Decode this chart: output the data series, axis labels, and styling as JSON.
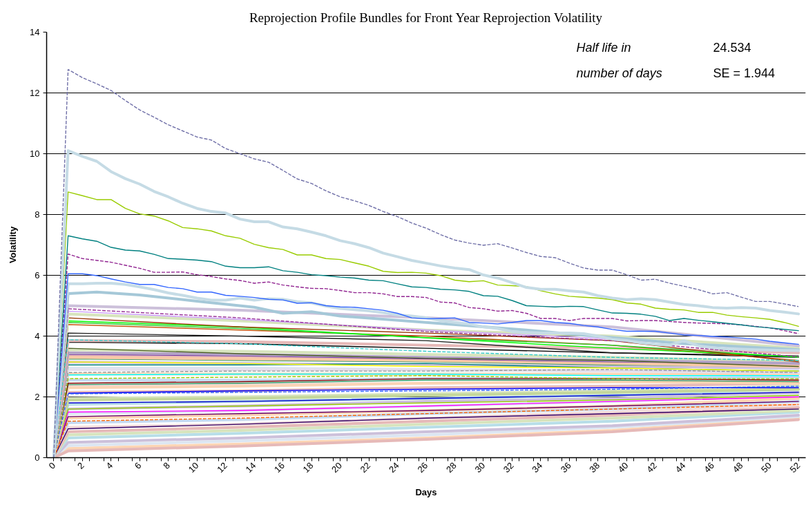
{
  "chart_data": {
    "type": "line",
    "title": "Reprojection Profile Bundles for Front Year Reprojection Volatility",
    "xlabel": "Days",
    "ylabel": "Volatility",
    "annotations": [
      "Half life in",
      "24.534",
      "number of days",
      "SE = 1.944"
    ],
    "xlim": [
      -0.5,
      52.5
    ],
    "ylim": [
      0,
      14
    ],
    "yticks": [
      0,
      2,
      4,
      6,
      8,
      10,
      12,
      14
    ],
    "xticks": [
      0,
      2,
      4,
      6,
      8,
      10,
      12,
      14,
      16,
      18,
      20,
      22,
      24,
      26,
      28,
      30,
      32,
      34,
      36,
      38,
      40,
      42,
      44,
      46,
      48,
      50,
      52,
      {
        "value": 0.5,
        "label": null
      },
      {
        "value": 1.5,
        "label": null
      },
      {
        "value": 2.5,
        "label": null
      },
      {
        "value": 3.5,
        "label": null
      },
      {
        "value": 4.5,
        "label": null
      },
      {
        "value": 5.5,
        "label": null
      },
      {
        "value": 6.5,
        "label": null
      },
      {
        "value": 7.5,
        "label": null
      },
      {
        "value": 8.5,
        "label": null
      },
      {
        "value": 9.5,
        "label": null
      },
      {
        "value": 10.5,
        "label": null
      },
      {
        "value": 11.5,
        "label": null
      },
      {
        "value": 12.5,
        "label": null
      },
      {
        "value": 13.5,
        "label": null
      },
      {
        "value": 14.5,
        "label": null
      },
      {
        "value": 15.5,
        "label": null
      },
      {
        "value": 16.5,
        "label": null
      },
      {
        "value": 17.5,
        "label": null
      },
      {
        "value": 18.5,
        "label": null
      },
      {
        "value": 19.5,
        "label": null
      },
      {
        "value": 20.5,
        "label": null
      },
      {
        "value": 21.5,
        "label": null
      },
      {
        "value": 22.5,
        "label": null
      },
      {
        "value": 23.5,
        "label": null
      },
      {
        "value": 24.5,
        "label": null
      },
      {
        "value": 25.5,
        "label": null
      },
      {
        "value": 26.5,
        "label": null
      },
      {
        "value": 27.5,
        "label": null
      },
      {
        "value": 28.5,
        "label": null
      },
      {
        "value": 29.5,
        "label": null
      },
      {
        "value": 30.5,
        "label": null
      },
      {
        "value": 31.5,
        "label": null
      },
      {
        "value": 32.5,
        "label": null
      },
      {
        "value": 33.5,
        "label": null
      },
      {
        "value": 34.5,
        "label": null
      },
      {
        "value": 35.5,
        "label": null
      },
      {
        "value": 36.5,
        "label": null
      },
      {
        "value": 37.5,
        "label": null
      },
      {
        "value": 38.5,
        "label": null
      },
      {
        "value": 39.5,
        "label": null
      },
      {
        "value": 40.5,
        "label": null
      },
      {
        "value": 41.5,
        "label": null
      },
      {
        "value": 42.5,
        "label": null
      },
      {
        "value": 43.5,
        "label": null
      },
      {
        "value": 44.5,
        "label": null
      },
      {
        "value": 45.5,
        "label": null
      },
      {
        "value": 46.5,
        "label": null
      },
      {
        "value": 47.5,
        "label": null
      },
      {
        "value": 48.5,
        "label": null
      },
      {
        "value": 49.5,
        "label": null
      },
      {
        "value": 50.5,
        "label": null
      },
      {
        "value": 51.5,
        "label": null
      }
    ],
    "grid": "y",
    "x": [
      0,
      1,
      2,
      3,
      4,
      5,
      6,
      7,
      8,
      9,
      10,
      11,
      12,
      13,
      14,
      15,
      16,
      17,
      18,
      19,
      20,
      21,
      22,
      23,
      24,
      25,
      26,
      27,
      28,
      29,
      30,
      31,
      32,
      33,
      34,
      35,
      36,
      37,
      38,
      39,
      40,
      41,
      42,
      43,
      44,
      45,
      46,
      47,
      48,
      49,
      50,
      51,
      52
    ],
    "series": [
      {
        "color": "#fcd5b4",
        "x": [
          0,
          1,
          13,
          26,
          39,
          52
        ],
        "values": [
          0,
          0.3,
          0.45,
          0.65,
          0.9,
          1.3
        ]
      },
      {
        "color": "#dce6f2",
        "x": [
          0,
          1,
          13,
          26,
          39,
          52
        ],
        "values": [
          0,
          0.4,
          0.55,
          0.75,
          1.0,
          1.35
        ]
      },
      {
        "color": "#ccc0da",
        "x": [
          0,
          1,
          13,
          26,
          39,
          52
        ],
        "values": [
          0,
          0.5,
          0.65,
          0.85,
          1.05,
          1.4
        ]
      },
      {
        "color": "#b7dee8",
        "x": [
          0,
          1,
          13,
          26,
          39,
          52
        ],
        "values": [
          0,
          0.65,
          0.8,
          1.0,
          1.2,
          1.5
        ]
      },
      {
        "color": "#d7e4bd",
        "x": [
          0,
          1,
          13,
          26,
          39,
          52
        ],
        "values": [
          0,
          0.75,
          0.9,
          1.1,
          1.3,
          1.55
        ]
      },
      {
        "color": "#e6b9b8",
        "x": [
          0,
          1,
          13,
          26,
          39,
          52
        ],
        "values": [
          0,
          0.85,
          1.0,
          1.2,
          1.4,
          1.65
        ]
      },
      {
        "color": "#f2dcdb",
        "x": [
          0,
          1,
          13,
          26,
          39,
          52
        ],
        "values": [
          0,
          1.0,
          1.1,
          1.3,
          1.5,
          1.75
        ]
      },
      {
        "color": "#c5d9f1",
        "x": [
          0,
          1,
          13,
          26,
          39,
          52
        ],
        "values": [
          0,
          1.15,
          1.25,
          1.45,
          1.6,
          1.85
        ]
      },
      {
        "color": "#fcd5b4",
        "x": [
          0,
          1,
          13,
          26,
          39,
          52
        ],
        "values": [
          0,
          1.3,
          1.4,
          1.55,
          1.7,
          1.95
        ]
      },
      {
        "color": "#dce6f2",
        "x": [
          0,
          1,
          13,
          26,
          39,
          52
        ],
        "values": [
          0,
          1.45,
          1.55,
          1.7,
          1.85,
          2.05
        ]
      },
      {
        "color": "#ccc0da",
        "x": [
          0,
          1,
          13,
          26,
          39,
          52
        ],
        "values": [
          0,
          1.6,
          1.7,
          1.85,
          1.95,
          2.15
        ]
      },
      {
        "color": "#b7dee8",
        "x": [
          0,
          1,
          13,
          26,
          39,
          52
        ],
        "values": [
          0,
          1.75,
          1.85,
          1.95,
          2.05,
          2.25
        ]
      },
      {
        "color": "#d7e4bd",
        "x": [
          0,
          1,
          13,
          26,
          39,
          52
        ],
        "values": [
          0,
          1.95,
          2.0,
          2.1,
          2.2,
          2.35
        ]
      },
      {
        "color": "#e6b9b8",
        "x": [
          0,
          1,
          13,
          26,
          39,
          52
        ],
        "values": [
          0,
          2.15,
          2.2,
          2.3,
          2.35,
          2.45
        ]
      },
      {
        "color": "#f2dcdb",
        "x": [
          0,
          1,
          13,
          26,
          39,
          52
        ],
        "values": [
          0,
          2.35,
          2.4,
          2.45,
          2.5,
          2.55
        ]
      },
      {
        "color": "#c5d9f1",
        "x": [
          0,
          1,
          13,
          26,
          39,
          52
        ],
        "values": [
          0,
          2.55,
          2.55,
          2.6,
          2.6,
          2.65
        ]
      },
      {
        "color": "#fcd5b4",
        "x": [
          0,
          1,
          13,
          26,
          39,
          52
        ],
        "values": [
          0,
          2.75,
          2.75,
          2.75,
          2.75,
          2.75
        ]
      },
      {
        "color": "#dce6f2",
        "x": [
          0,
          1,
          13,
          26,
          39,
          52
        ],
        "values": [
          0,
          2.95,
          2.95,
          2.9,
          2.85,
          2.85
        ]
      },
      {
        "color": "#ccc0da",
        "x": [
          0,
          1,
          13,
          26,
          39,
          52
        ],
        "values": [
          0,
          3.15,
          3.1,
          3.05,
          3.0,
          2.95
        ]
      },
      {
        "color": "#e6b9b8",
        "x": [
          0,
          1,
          13,
          26,
          39,
          52
        ],
        "values": [
          0,
          3.35,
          3.3,
          3.2,
          3.1,
          3.05
        ]
      },
      {
        "color": "#d7e4bd",
        "x": [
          0,
          1,
          13,
          26,
          39,
          52
        ],
        "values": [
          0,
          3.55,
          3.5,
          3.4,
          3.3,
          3.15
        ]
      },
      {
        "color": "#e6b9b8",
        "x": [
          0,
          1,
          13,
          26,
          39,
          52
        ],
        "values": [
          0,
          0.22,
          0.38,
          0.6,
          0.85,
          1.25
        ]
      },
      {
        "color": "#330066",
        "x": [
          0,
          1,
          13,
          26,
          39,
          52
        ],
        "values": [
          0,
          0.95,
          1.1,
          1.3,
          1.45,
          1.6
        ]
      },
      {
        "color": "#660066",
        "x": [
          0,
          1,
          13,
          26,
          39,
          52
        ],
        "values": [
          0,
          1.35,
          1.45,
          1.55,
          1.7,
          1.85
        ]
      },
      {
        "color": "#ff00ff",
        "x": [
          0,
          1,
          13,
          26,
          39,
          52
        ],
        "values": [
          0,
          1.5,
          1.55,
          1.7,
          1.85,
          2.0
        ]
      },
      {
        "color": "#99cc00",
        "x": [
          0,
          1,
          13,
          26,
          39,
          52
        ],
        "values": [
          0,
          1.6,
          1.7,
          1.8,
          1.9,
          2.05
        ]
      },
      {
        "color": "#0000cc",
        "x": [
          0,
          1,
          13,
          26,
          39,
          52
        ],
        "values": [
          0,
          1.8,
          1.85,
          1.95,
          2.05,
          2.15
        ]
      },
      {
        "color": "#c4d79b",
        "x": [
          0,
          1,
          13,
          26,
          39,
          52
        ],
        "values": [
          0,
          1.9,
          1.95,
          2.05,
          2.15,
          2.25
        ]
      },
      {
        "color": "#0000ff",
        "x": [
          0,
          1,
          13,
          26,
          39,
          52
        ],
        "values": [
          0,
          2.12,
          2.2,
          2.25,
          2.3,
          2.3
        ]
      },
      {
        "color": "#fbd4b4",
        "x": [
          0,
          1,
          13,
          26,
          39,
          52
        ],
        "values": [
          0,
          2.3,
          2.35,
          2.45,
          2.5,
          2.45
        ]
      },
      {
        "color": "#339966",
        "x": [
          0,
          1,
          13,
          26,
          39,
          52
        ],
        "values": [
          0,
          2.4,
          2.45,
          2.55,
          2.55,
          2.5
        ]
      },
      {
        "color": "#800000",
        "x": [
          0,
          1,
          13,
          26,
          39,
          52
        ],
        "values": [
          0,
          2.45,
          2.5,
          2.6,
          2.6,
          2.55
        ]
      },
      {
        "color": "#00ffff",
        "x": [
          0,
          1,
          13,
          26,
          39,
          52
        ],
        "values": [
          0,
          2.72,
          2.75,
          2.75,
          2.7,
          2.7
        ]
      },
      {
        "color": "#e4dfec",
        "x": [
          0,
          1,
          13,
          26,
          39,
          52
        ],
        "values": [
          0,
          2.9,
          2.9,
          2.9,
          2.85,
          2.8
        ]
      },
      {
        "color": "#008080",
        "x": [
          0,
          1,
          13,
          26,
          39,
          52
        ],
        "values": [
          0,
          3.05,
          3.05,
          3.1,
          2.95,
          2.85
        ]
      },
      {
        "color": "#ffff00",
        "x": [
          0,
          1,
          13,
          26,
          39,
          52
        ],
        "values": [
          0,
          3.15,
          3.1,
          3.0,
          2.95,
          2.85
        ]
      },
      {
        "color": "#339966",
        "x": [
          0,
          1,
          13,
          26,
          39,
          52
        ],
        "values": [
          0,
          3.25,
          3.2,
          3.15,
          3.05,
          3.0
        ]
      },
      {
        "color": "#f9c9a6",
        "x": [
          0,
          1,
          13,
          26,
          39,
          52
        ],
        "values": [
          0,
          3.3,
          3.25,
          3.2,
          3.1,
          3.0
        ]
      },
      {
        "color": "#7030a0",
        "x": [
          0,
          1,
          13,
          26,
          39,
          52
        ],
        "values": [
          0,
          3.4,
          3.35,
          3.25,
          3.15,
          3.1
        ]
      },
      {
        "color": "#b3a2c7",
        "x": [
          0,
          1,
          13,
          26,
          39,
          52
        ],
        "values": [
          0,
          3.45,
          3.4,
          3.3,
          3.2,
          3.1
        ]
      },
      {
        "color": "#4f6228",
        "x": [
          0,
          1,
          13,
          26,
          39,
          52
        ],
        "values": [
          0,
          3.6,
          3.42,
          3.27,
          3.2,
          3.0
        ]
      },
      {
        "color": "#000000",
        "x": [
          0,
          1,
          13,
          26,
          39,
          52
        ],
        "values": [
          0,
          3.8,
          3.75,
          3.6,
          3.45,
          3.3
        ]
      },
      {
        "color": "#e6b9b8",
        "x": [
          0,
          1,
          13,
          26,
          39,
          52
        ],
        "values": [
          0,
          3.85,
          3.82,
          3.7,
          3.6,
          3.45
        ]
      },
      {
        "color": "#1f1f1f",
        "x": [
          0,
          1,
          13,
          26,
          39,
          52
        ],
        "values": [
          0,
          4.1,
          4.0,
          3.85,
          3.45,
          3.35
        ]
      },
      {
        "color": "#c65911",
        "x": [
          0,
          1,
          13,
          26,
          39,
          52
        ],
        "values": [
          0,
          4.38,
          4.2,
          4.0,
          3.7,
          3.2
        ]
      },
      {
        "color": "#33cc33",
        "x": [
          0,
          1,
          13,
          26,
          39,
          52
        ],
        "values": [
          0,
          4.45,
          4.25,
          3.95,
          3.7,
          3.3
        ]
      },
      {
        "color": "#00ff00",
        "x": [
          0,
          1,
          13,
          26,
          39,
          52
        ],
        "values": [
          0,
          4.5,
          4.3,
          3.94,
          3.6,
          3.32
        ]
      },
      {
        "color": "#993300",
        "x": [
          0,
          1,
          13,
          26,
          39,
          52
        ],
        "values": [
          0,
          4.6,
          4.3,
          4.1,
          3.85,
          3.15
        ]
      },
      {
        "color": "#d7e4bd",
        "x": [
          0,
          1,
          13,
          26,
          39,
          52
        ],
        "values": [
          0,
          4.73,
          4.5,
          4.2,
          4.0,
          3.6
        ]
      },
      {
        "color": "#cc99ff",
        "x": [
          0,
          1,
          13,
          26,
          39,
          52
        ],
        "values": [
          0,
          4.82,
          4.55,
          4.2,
          3.9,
          3.5
        ]
      },
      {
        "color": "#ccc0da",
        "x": [
          0,
          1,
          13,
          26,
          39,
          52
        ],
        "values": [
          0,
          5.0,
          4.85,
          4.6,
          4.3,
          3.68
        ]
      },
      {
        "color": "#ff6600",
        "line_style": "dashed",
        "x": [
          0,
          1,
          13,
          26,
          39,
          52
        ],
        "values": [
          0,
          1.2,
          1.3,
          1.45,
          1.6,
          1.75
        ]
      },
      {
        "color": "#3366ff",
        "line_style": "dashed",
        "x": [
          0,
          1,
          13,
          26,
          39,
          52
        ],
        "values": [
          0,
          2.1,
          2.15,
          2.2,
          2.25,
          2.35
        ]
      },
      {
        "color": "#99cc00",
        "line_style": "dashed",
        "x": [
          0,
          1,
          13,
          26,
          39,
          52
        ],
        "values": [
          0,
          2.6,
          2.65,
          2.7,
          2.6,
          2.6
        ]
      },
      {
        "color": "#969696",
        "line_style": "dashed",
        "x": [
          0,
          1,
          13,
          26,
          39,
          52
        ],
        "values": [
          0,
          2.8,
          2.85,
          2.85,
          2.9,
          2.8
        ]
      },
      {
        "color": "#33cccc",
        "line_style": "dashed",
        "x": [
          0,
          1,
          13,
          26,
          39,
          52
        ],
        "values": [
          0,
          3.88,
          3.75,
          3.5,
          3.3,
          3.2
        ]
      },
      {
        "color": "#993399",
        "line_style": "dashed",
        "x": [
          0,
          1,
          13,
          26,
          39,
          52
        ],
        "values": [
          0,
          4.9,
          4.6,
          4.15,
          3.85,
          3.32
        ]
      },
      {
        "color": "#a5c8d8",
        "x": [
          0,
          1,
          3,
          6,
          10,
          14,
          16,
          18,
          20,
          26,
          33,
          39,
          44,
          52
        ],
        "values": [
          0,
          5.4,
          5.45,
          5.35,
          5.15,
          4.95,
          4.75,
          4.8,
          4.66,
          4.45,
          4.2,
          3.95,
          3.75,
          3.55
        ]
      },
      {
        "color": "#c6dce6",
        "values": [
          0,
          5.72,
          5.72,
          5.74,
          5.74,
          5.7,
          5.62,
          5.53,
          5.42,
          5.34,
          5.25,
          5.18,
          5.18,
          5.25,
          5.18,
          5.23,
          5.21,
          5.13,
          5.09,
          4.99,
          4.91,
          4.87,
          4.83,
          4.77,
          4.7,
          4.66,
          4.6,
          4.51,
          4.45,
          4.4,
          4.3,
          4.25,
          4.15,
          4.12,
          4.1,
          4.1,
          4.1,
          4.08,
          4.0,
          3.9,
          3.85,
          3.78,
          3.73,
          3.7,
          3.85,
          3.68,
          3.62,
          3.58,
          3.57,
          3.55,
          3.54,
          3.53,
          3.52
        ]
      },
      {
        "color": "#3366ff",
        "values": [
          0,
          6.05,
          6.05,
          5.99,
          5.88,
          5.78,
          5.7,
          5.7,
          5.6,
          5.56,
          5.45,
          5.45,
          5.34,
          5.31,
          5.27,
          5.21,
          5.19,
          5.08,
          5.1,
          5.0,
          4.96,
          4.95,
          4.9,
          4.85,
          4.75,
          4.6,
          4.57,
          4.58,
          4.6,
          4.45,
          4.43,
          4.4,
          4.45,
          4.51,
          4.51,
          4.45,
          4.42,
          4.35,
          4.3,
          4.22,
          4.16,
          4.16,
          4.16,
          4.1,
          4.04,
          4.02,
          3.99,
          3.97,
          3.94,
          3.9,
          3.83,
          3.78,
          3.73
        ]
      },
      {
        "color": "#912591",
        "line_style": "dashed",
        "values": [
          0,
          6.7,
          6.55,
          6.49,
          6.43,
          6.33,
          6.23,
          6.1,
          6.1,
          6.11,
          6.02,
          5.96,
          5.88,
          5.83,
          5.74,
          5.78,
          5.68,
          5.62,
          5.57,
          5.56,
          5.5,
          5.43,
          5.43,
          5.39,
          5.3,
          5.3,
          5.27,
          5.12,
          5.09,
          4.94,
          4.9,
          4.82,
          4.84,
          4.75,
          4.58,
          4.58,
          4.51,
          4.58,
          4.58,
          4.58,
          4.5,
          4.51,
          4.51,
          4.48,
          4.45,
          4.43,
          4.42,
          4.4,
          4.37,
          4.32,
          4.27,
          4.18,
          4.08
        ]
      },
      {
        "color": "#008080",
        "values": [
          0,
          7.3,
          7.2,
          7.12,
          6.92,
          6.83,
          6.8,
          6.69,
          6.55,
          6.53,
          6.5,
          6.45,
          6.3,
          6.25,
          6.25,
          6.28,
          6.15,
          6.1,
          6.02,
          5.99,
          5.94,
          5.91,
          5.84,
          5.82,
          5.72,
          5.62,
          5.6,
          5.54,
          5.52,
          5.47,
          5.33,
          5.31,
          5.17,
          5.0,
          4.98,
          4.96,
          4.98,
          4.97,
          4.86,
          4.76,
          4.75,
          4.72,
          4.65,
          4.51,
          4.58,
          4.52,
          4.47,
          4.42,
          4.37,
          4.31,
          4.27,
          4.22,
          4.18
        ]
      },
      {
        "color": "#99cc00",
        "values": [
          0,
          8.74,
          8.62,
          8.49,
          8.49,
          8.2,
          8.02,
          7.95,
          7.79,
          7.57,
          7.53,
          7.46,
          7.3,
          7.22,
          7.02,
          6.91,
          6.85,
          6.67,
          6.67,
          6.55,
          6.52,
          6.41,
          6.3,
          6.13,
          6.09,
          6.1,
          6.07,
          5.99,
          5.84,
          5.79,
          5.82,
          5.68,
          5.66,
          5.63,
          5.49,
          5.39,
          5.31,
          5.28,
          5.25,
          5.2,
          5.09,
          5.05,
          4.92,
          4.88,
          4.86,
          4.78,
          4.78,
          4.69,
          4.64,
          4.6,
          4.55,
          4.45,
          4.32
        ]
      },
      {
        "color": "#c5dbe5",
        "values": [
          0,
          10.1,
          9.91,
          9.75,
          9.41,
          9.18,
          9.0,
          8.76,
          8.58,
          8.37,
          8.2,
          8.1,
          8.05,
          7.85,
          7.76,
          7.76,
          7.59,
          7.53,
          7.42,
          7.3,
          7.14,
          7.04,
          6.91,
          6.73,
          6.61,
          6.49,
          6.4,
          6.31,
          6.24,
          6.19,
          6.01,
          5.91,
          5.76,
          5.6,
          5.54,
          5.54,
          5.49,
          5.45,
          5.33,
          5.25,
          5.2,
          5.23,
          5.2,
          5.12,
          5.04,
          5.0,
          4.94,
          4.92,
          4.94,
          4.92,
          4.84,
          4.79,
          4.73
        ]
      },
      {
        "color": "#7070a8",
        "line_style": "dashed",
        "values": [
          0,
          12.77,
          12.5,
          12.3,
          12.08,
          11.75,
          11.44,
          11.2,
          10.95,
          10.75,
          10.55,
          10.45,
          10.17,
          10.0,
          9.83,
          9.72,
          9.45,
          9.17,
          9.02,
          8.78,
          8.58,
          8.45,
          8.3,
          8.1,
          7.93,
          7.72,
          7.55,
          7.34,
          7.16,
          7.06,
          6.99,
          7.04,
          6.9,
          6.75,
          6.62,
          6.58,
          6.4,
          6.24,
          6.17,
          6.17,
          6.02,
          5.84,
          5.87,
          5.74,
          5.64,
          5.53,
          5.39,
          5.43,
          5.28,
          5.14,
          5.14,
          5.06,
          4.97
        ]
      }
    ]
  }
}
